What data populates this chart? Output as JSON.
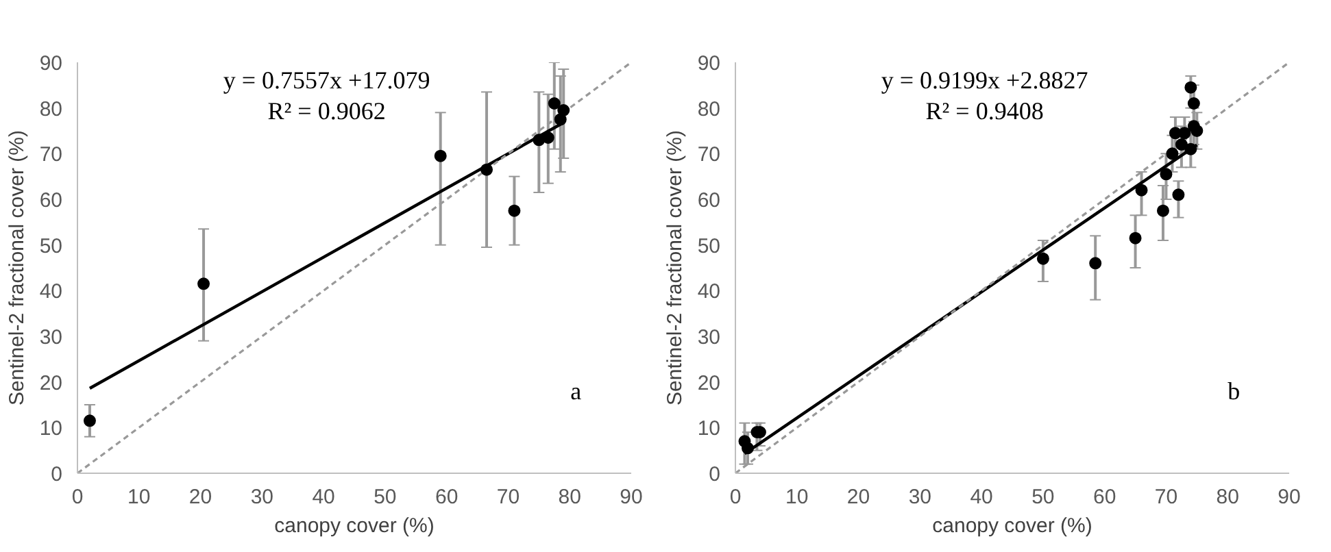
{
  "chart_data": [
    {
      "type": "scatter",
      "xlabel": "canopy cover (%)",
      "ylabel": "Sentinel-2 fractional cover (%)",
      "annotations": [
        "y = 0.7557x +17.079",
        "R² = 0.9062",
        "a"
      ],
      "xlim": [
        0,
        90
      ],
      "ylim": [
        0,
        90
      ],
      "xticks": [
        0,
        10,
        20,
        30,
        40,
        50,
        60,
        70,
        80,
        90
      ],
      "yticks": [
        0,
        10,
        20,
        30,
        40,
        50,
        60,
        70,
        80,
        90
      ],
      "series": [
        {
          "color": "#000000",
          "marker": "circle",
          "x": [
            2,
            20.5,
            59,
            66.5,
            71,
            75,
            76.5,
            77.5,
            78.5,
            79
          ],
          "values": [
            11.5,
            41.5,
            69.5,
            66.5,
            57.5,
            73,
            73.5,
            81,
            77.5,
            79.5
          ],
          "errors": [
            [
              8,
              15
            ],
            [
              29,
              53.5
            ],
            [
              50,
              79
            ],
            [
              49.5,
              83.5
            ],
            [
              50,
              65
            ],
            [
              61.5,
              83.5
            ],
            [
              63.5,
              83
            ],
            [
              71,
              90
            ],
            [
              66,
              87
            ],
            [
              69,
              88.5
            ]
          ]
        },
        {
          "type": "line",
          "color": "#000000",
          "line_style": "solid",
          "x": [
            2,
            79
          ],
          "values": [
            18.6,
            76.8
          ]
        },
        {
          "type": "line",
          "color": "#999999",
          "line_style": "dashed",
          "x": [
            0,
            90
          ],
          "values": [
            0,
            90
          ]
        }
      ]
    },
    {
      "type": "scatter",
      "xlabel": "canopy cover (%)",
      "ylabel": "Sentinel-2 fractional cover (%)",
      "annotations": [
        "y = 0.9199x +2.8827",
        "R² = 0.9408",
        "b"
      ],
      "xlim": [
        0,
        90
      ],
      "ylim": [
        0,
        90
      ],
      "xticks": [
        0,
        10,
        20,
        30,
        40,
        50,
        60,
        70,
        80,
        90
      ],
      "yticks": [
        0,
        10,
        20,
        30,
        40,
        50,
        60,
        70,
        80,
        90
      ],
      "series": [
        {
          "color": "#000000",
          "marker": "circle",
          "x": [
            1.5,
            2,
            3.5,
            4,
            50,
            58.5,
            65,
            66,
            69.5,
            70,
            71,
            71.5,
            72,
            72.5,
            73,
            74,
            74,
            74.5,
            74.5,
            75
          ],
          "values": [
            7,
            5.5,
            9,
            9,
            47,
            46,
            51.5,
            62,
            57.5,
            65.5,
            70,
            74.5,
            61,
            72,
            74.5,
            71,
            84.5,
            76,
            81,
            75
          ],
          "errors": [
            [
              2,
              11
            ],
            [
              2,
              9
            ],
            [
              5,
              11
            ],
            [
              6,
              11
            ],
            [
              42,
              51
            ],
            [
              38,
              52
            ],
            [
              45,
              56.5
            ],
            [
              56.5,
              66
            ],
            [
              51,
              63
            ],
            [
              60,
              70
            ],
            [
              66,
              74
            ],
            [
              70,
              78
            ],
            [
              56,
              64
            ],
            [
              67,
              76
            ],
            [
              70,
              78
            ],
            [
              67,
              75
            ],
            [
              80,
              87
            ],
            [
              72,
              80
            ],
            [
              77,
              85
            ],
            [
              71,
              79
            ]
          ]
        },
        {
          "type": "line",
          "color": "#000000",
          "line_style": "solid",
          "x": [
            1.5,
            75
          ],
          "values": [
            4.3,
            71.9
          ]
        },
        {
          "type": "line",
          "color": "#999999",
          "line_style": "dashed",
          "x": [
            0,
            90
          ],
          "values": [
            0,
            90
          ]
        }
      ]
    }
  ]
}
